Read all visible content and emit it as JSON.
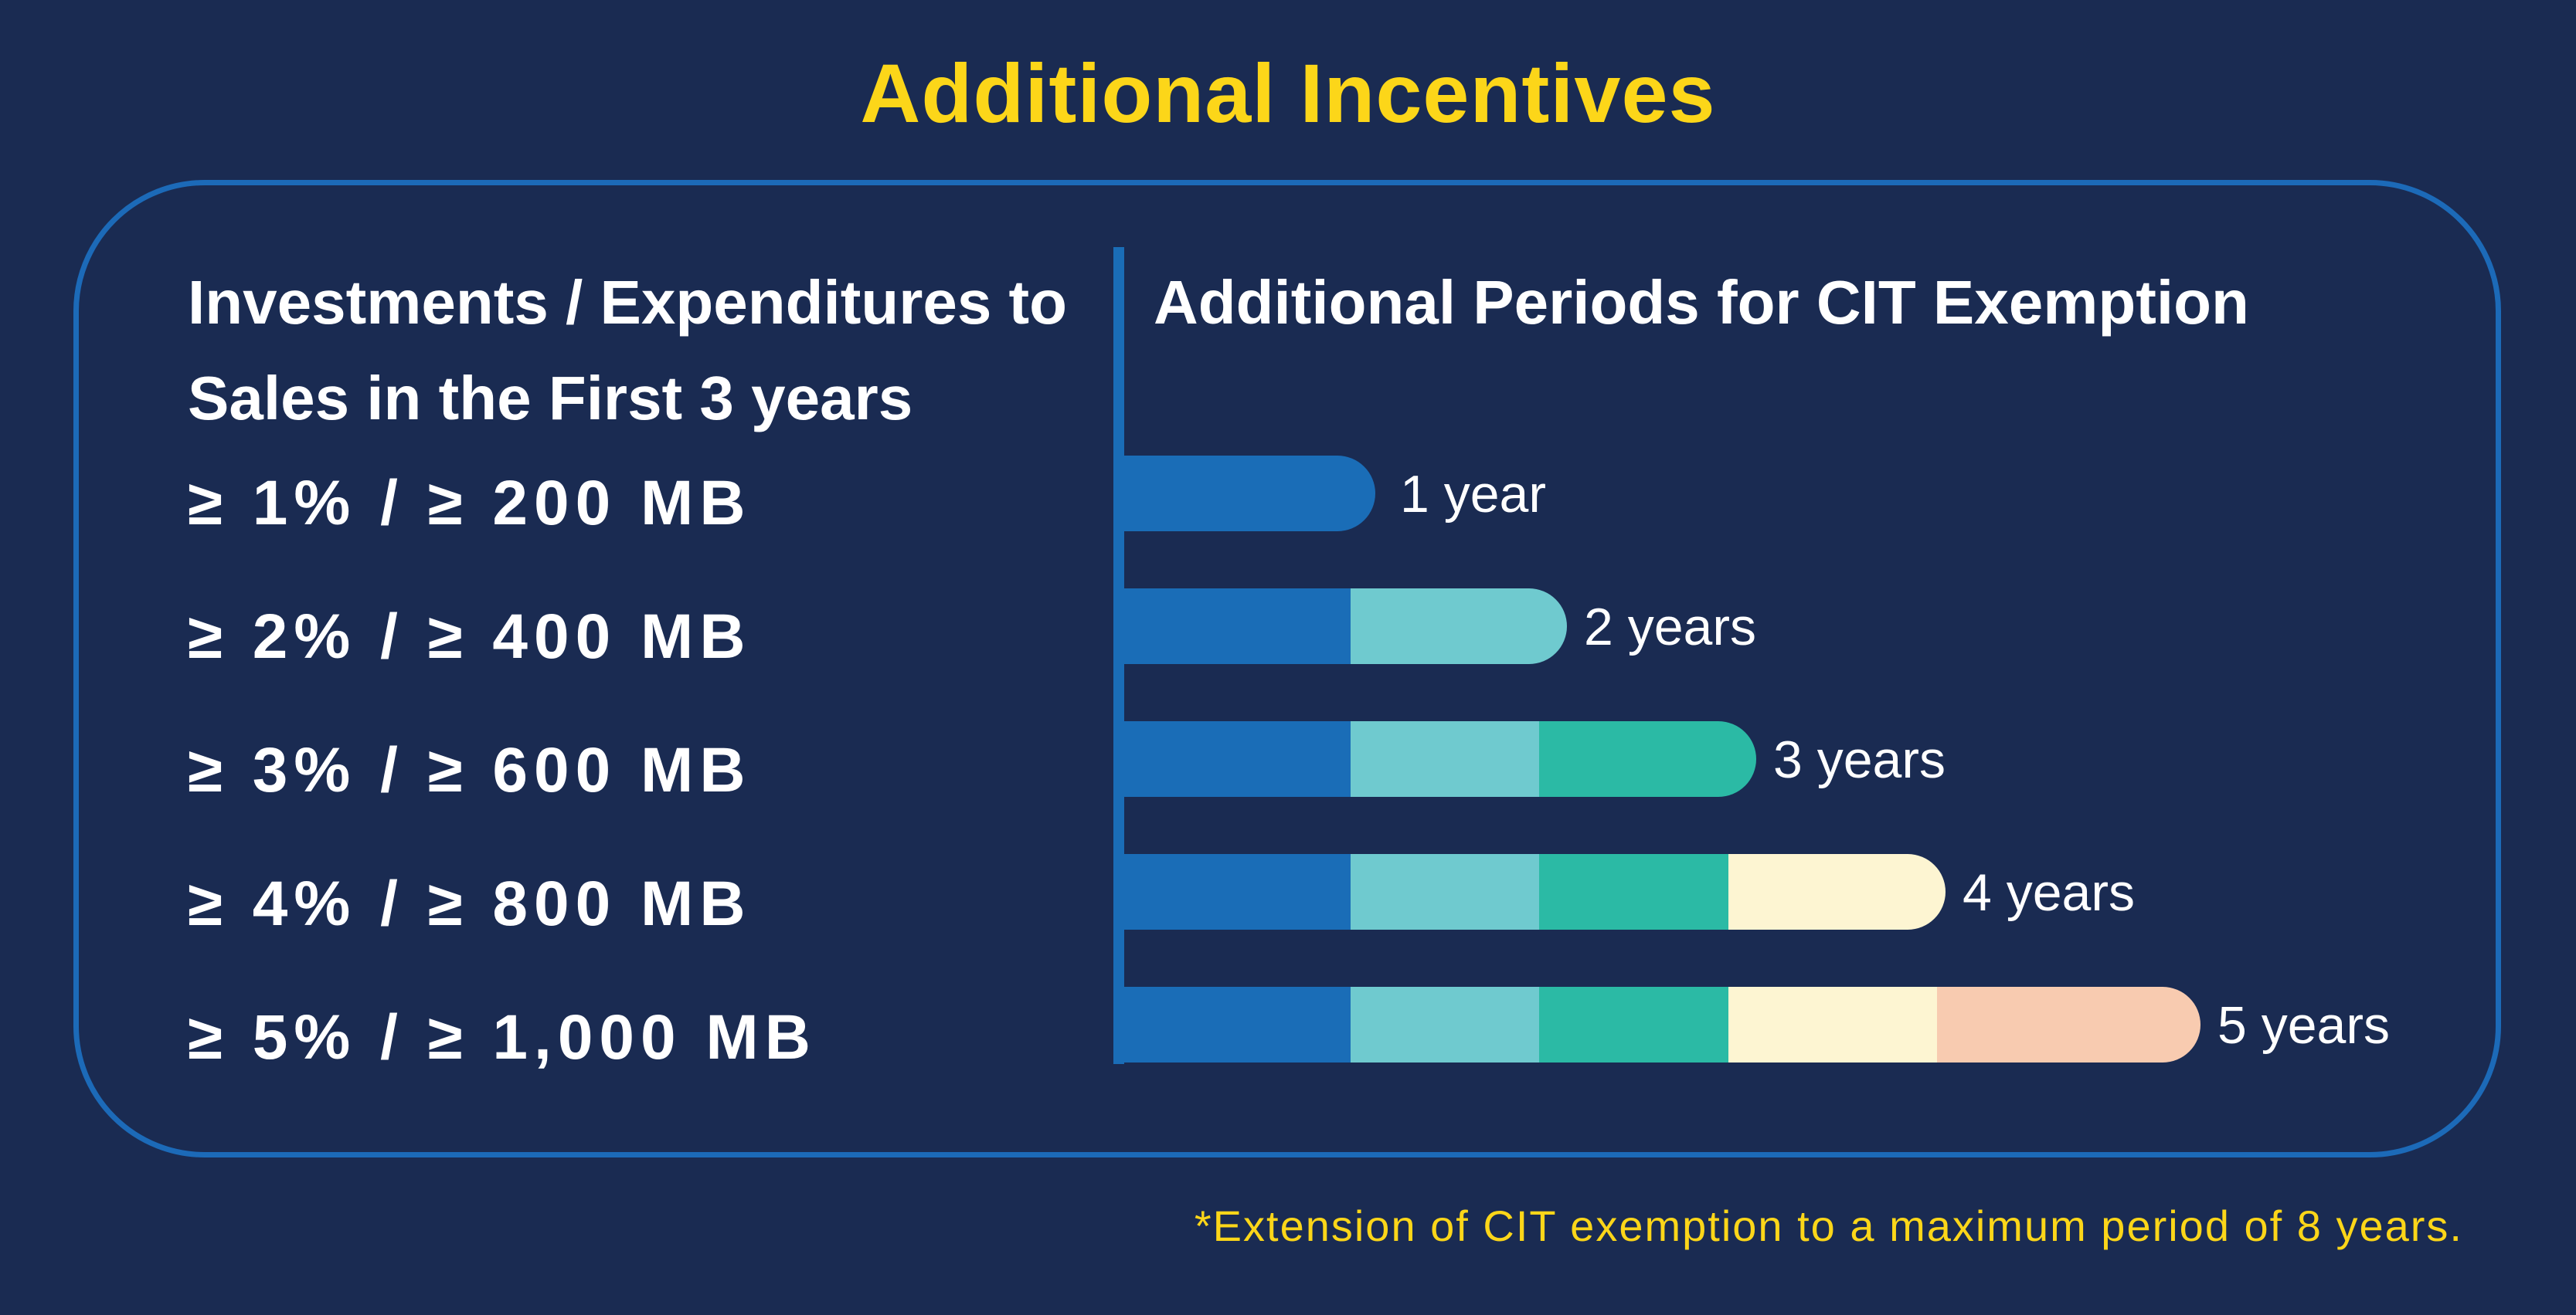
{
  "title": "Additional Incentives",
  "left_header": "Investments / Expenditures to Sales in the First 3 years",
  "right_header": "Additional Periods for CIT Exemption",
  "requirements": [
    "≥ 1% / ≥ 200 MB",
    "≥ 2% / ≥ 400 MB",
    "≥ 3% / ≥ 600 MB",
    "≥ 4% / ≥ 800 MB",
    "≥ 5% / ≥ 1,000 MB"
  ],
  "footnote": "*Extension of CIT exemption to a maximum period of 8 years.",
  "colors": {
    "background": "#1a2b52",
    "accent": "#fcd619",
    "panel_border": "#1c6ab8",
    "segment_1": "#1a6db7",
    "segment_2": "#6fcacf",
    "segment_3": "#2bbaa5",
    "segment_4": "#fdf5d2",
    "segment_5": "#f8cbb0"
  },
  "chart_data": {
    "type": "bar",
    "orientation": "horizontal",
    "stacked": true,
    "title": "Additional Periods for CIT Exemption",
    "categories": [
      "≥ 1% / ≥ 200 MB",
      "≥ 2% / ≥ 400 MB",
      "≥ 3% / ≥ 600 MB",
      "≥ 4% / ≥ 800 MB",
      "≥ 5% / ≥ 1,000 MB"
    ],
    "values": [
      1,
      2,
      3,
      4,
      5
    ],
    "value_labels": [
      "1 year",
      "2 years",
      "3 years",
      "4 years",
      "5 years"
    ],
    "unit": "years",
    "xlim": [
      0,
      5
    ]
  }
}
